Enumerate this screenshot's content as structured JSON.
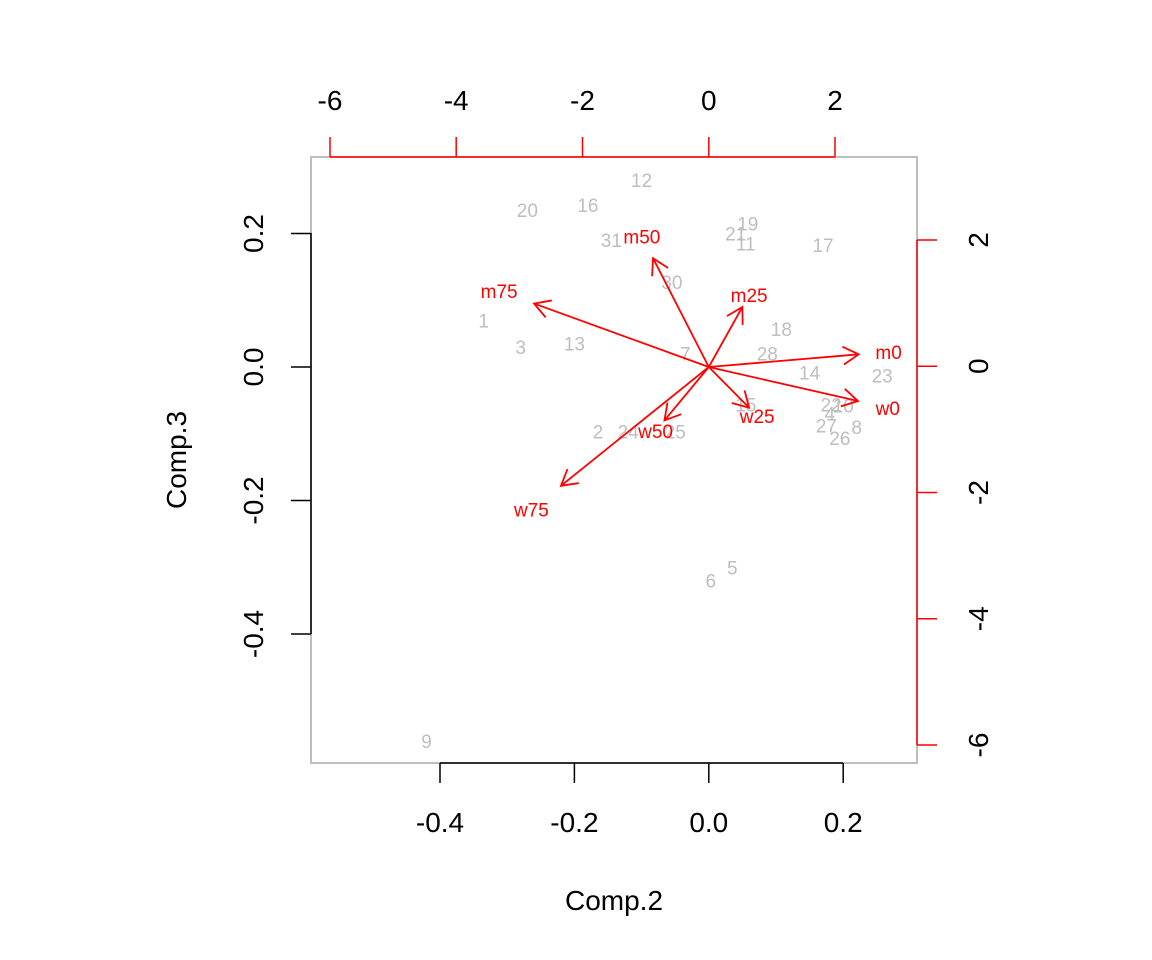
{
  "colors": {
    "background": "#ffffff",
    "axis": "#000000",
    "box": "#bebebe",
    "observation": "#bebebe",
    "loading": "#ff0000"
  },
  "chart_data": {
    "type": "scatter",
    "subtype": "biplot",
    "title": "",
    "xlabel": "Comp.2",
    "ylabel": "Comp.3",
    "xlim": [
      -0.58,
      0.31
    ],
    "ylim": [
      -0.59,
      0.31
    ],
    "xticks": [
      -0.4,
      -0.2,
      0.0,
      0.2
    ],
    "xtick_labels": [
      "-0.4",
      "-0.2",
      "0.0",
      "0.2"
    ],
    "yticks": [
      -0.4,
      -0.2,
      0.0,
      0.2
    ],
    "ytick_labels": [
      "-0.4",
      "-0.2",
      "0.0",
      "0.2"
    ],
    "top_axis": {
      "ticks": [
        -6,
        -4,
        -2,
        0,
        2
      ],
      "tick_labels": [
        "-6",
        "-4",
        "-2",
        "0",
        "2"
      ],
      "color": "#ff0000",
      "label_color": "#000000"
    },
    "right_axis": {
      "ticks": [
        -6,
        -4,
        -2,
        0,
        2
      ],
      "tick_labels": [
        "-6",
        "-4",
        "-2",
        "0",
        "2"
      ],
      "color": "#ff0000",
      "label_color": "#000000"
    },
    "loading_scale": 0.106,
    "grid": false,
    "observations": [
      {
        "label": "1",
        "x": -0.335,
        "y": 0.07
      },
      {
        "label": "2",
        "x": -0.165,
        "y": -0.097
      },
      {
        "label": "3",
        "x": -0.28,
        "y": 0.03
      },
      {
        "label": "4",
        "x": 0.18,
        "y": -0.07
      },
      {
        "label": "5",
        "x": 0.035,
        "y": -0.3
      },
      {
        "label": "6",
        "x": 0.003,
        "y": -0.32
      },
      {
        "label": "7",
        "x": -0.035,
        "y": 0.02
      },
      {
        "label": "8",
        "x": 0.22,
        "y": -0.09
      },
      {
        "label": "9",
        "x": -0.42,
        "y": -0.56
      },
      {
        "label": "10",
        "x": 0.2,
        "y": -0.058
      },
      {
        "label": "11",
        "x": 0.055,
        "y": 0.185
      },
      {
        "label": "12",
        "x": -0.1,
        "y": 0.28
      },
      {
        "label": "13",
        "x": -0.2,
        "y": 0.035
      },
      {
        "label": "14",
        "x": 0.15,
        "y": -0.008
      },
      {
        "label": "15",
        "x": 0.055,
        "y": -0.056
      },
      {
        "label": "16",
        "x": -0.18,
        "y": 0.243
      },
      {
        "label": "17",
        "x": 0.17,
        "y": 0.183
      },
      {
        "label": "18",
        "x": 0.108,
        "y": 0.057
      },
      {
        "label": "19",
        "x": 0.058,
        "y": 0.215
      },
      {
        "label": "20",
        "x": -0.27,
        "y": 0.235
      },
      {
        "label": "21",
        "x": 0.04,
        "y": 0.2
      },
      {
        "label": "22",
        "x": 0.182,
        "y": -0.056
      },
      {
        "label": "23",
        "x": 0.258,
        "y": -0.013
      },
      {
        "label": "24",
        "x": -0.12,
        "y": -0.097
      },
      {
        "label": "25",
        "x": -0.05,
        "y": -0.097
      },
      {
        "label": "26",
        "x": 0.195,
        "y": -0.106
      },
      {
        "label": "27",
        "x": 0.175,
        "y": -0.088
      },
      {
        "label": "28",
        "x": 0.087,
        "y": 0.02
      },
      {
        "label": "30",
        "x": -0.055,
        "y": 0.127
      },
      {
        "label": "31",
        "x": -0.145,
        "y": 0.19
      }
    ],
    "loadings": [
      {
        "label": "m0",
        "x": 0.223,
        "y": 0.019
      },
      {
        "label": "w0",
        "x": 0.222,
        "y": -0.051
      },
      {
        "label": "m25",
        "x": 0.05,
        "y": 0.09
      },
      {
        "label": "w25",
        "x": 0.06,
        "y": -0.061
      },
      {
        "label": "m50",
        "x": -0.083,
        "y": 0.163
      },
      {
        "label": "w50",
        "x": -0.066,
        "y": -0.08
      },
      {
        "label": "m75",
        "x": -0.26,
        "y": 0.095
      },
      {
        "label": "w75",
        "x": -0.22,
        "y": -0.178
      }
    ]
  }
}
